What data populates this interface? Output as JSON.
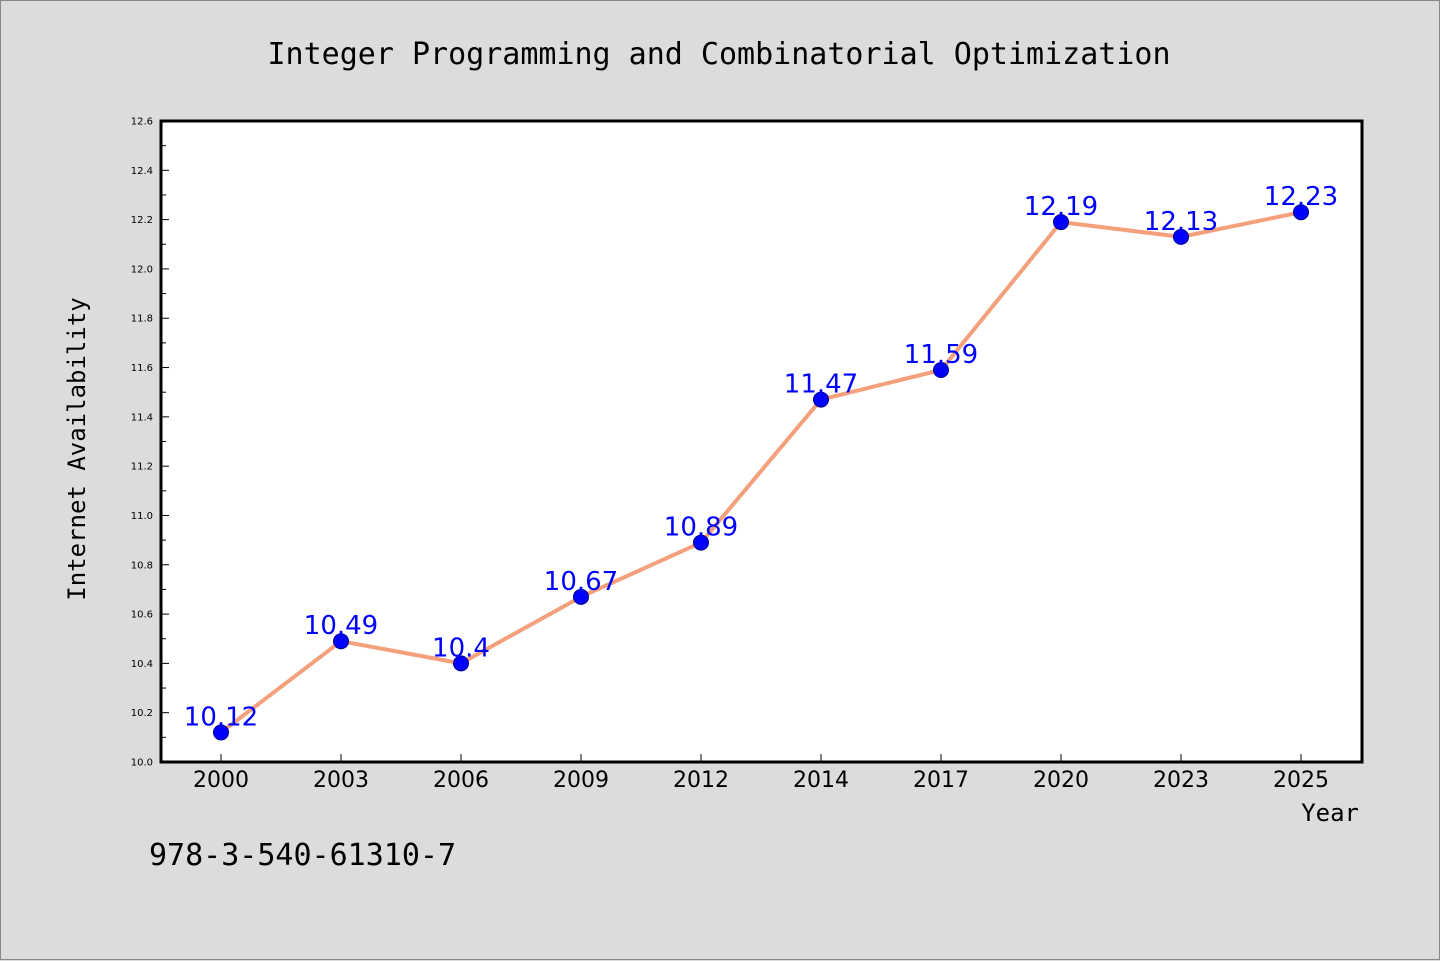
{
  "chart_data": {
    "type": "line",
    "title": "Integer Programming and Combinatorial Optimization",
    "xlabel": "Year",
    "ylabel": "Internet Availability",
    "categories": [
      "2000",
      "2003",
      "2006",
      "2009",
      "2012",
      "2014",
      "2017",
      "2020",
      "2023",
      "2025"
    ],
    "series": [
      {
        "values": [
          10.12,
          10.49,
          10.4,
          10.67,
          10.89,
          11.47,
          11.59,
          12.19,
          12.13,
          12.23
        ],
        "data_labels": [
          "10.12",
          "10.49",
          "10.4",
          "10.67",
          "10.89",
          "11.47",
          "11.59",
          "12.19",
          "12.13",
          "12.23"
        ],
        "line_color": "#f4a07c",
        "marker_color": "#0000ff",
        "label_color": "#0000ff"
      }
    ],
    "ylim": [
      10.0,
      12.6
    ],
    "yticks": [
      "10.0",
      "10.2",
      "10.4",
      "10.6",
      "10.8",
      "11.0",
      "11.2",
      "11.4",
      "11.6",
      "11.8",
      "12.0",
      "12.2",
      "12.4",
      "12.6"
    ],
    "grid": false,
    "legend": "none"
  },
  "footer": {
    "isbn": "978-3-540-61310-7"
  },
  "colors": {
    "background": "#dcdcdc",
    "plot_area": "#ffffff"
  }
}
